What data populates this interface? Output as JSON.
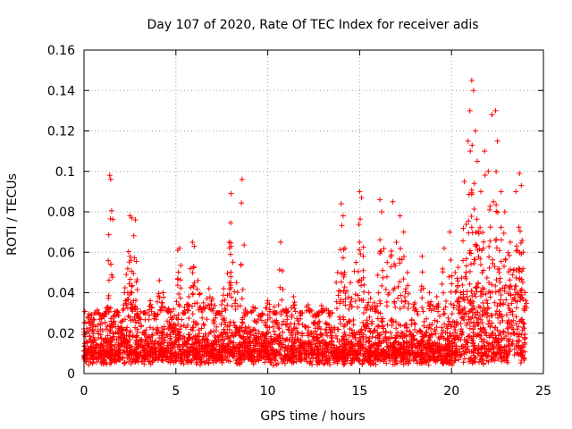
{
  "chart_data": {
    "type": "scatter",
    "title": "Day 107 of 2020, Rate Of TEC Index for receiver adis",
    "xlabel": "GPS time / hours",
    "ylabel": "ROTI / TECUs",
    "xlim": [
      0,
      25
    ],
    "ylim": [
      0,
      0.16
    ],
    "xticks": [
      0,
      5,
      10,
      15,
      20,
      25
    ],
    "xtick_labels": [
      "0",
      "5",
      "10",
      "15",
      "20",
      "25"
    ],
    "yticks": [
      0,
      0.02,
      0.04,
      0.06,
      0.08,
      0.1,
      0.12,
      0.14,
      0.16
    ],
    "ytick_labels": [
      "0",
      "0.02",
      "0.04",
      "0.06",
      "0.08",
      "0.1",
      "0.12",
      "0.14",
      "0.16"
    ],
    "grid": true,
    "marker": "+",
    "color": "#ff0000",
    "series": [
      {
        "name": "ROTI",
        "points": [
          [
            0.1,
            0.012
          ],
          [
            0.3,
            0.025
          ],
          [
            0.5,
            0.018
          ],
          [
            0.7,
            0.03
          ],
          [
            0.9,
            0.022
          ],
          [
            1.1,
            0.028
          ],
          [
            1.3,
            0.033
          ],
          [
            1.4,
            0.098
          ],
          [
            1.45,
            0.096
          ],
          [
            1.6,
            0.02
          ],
          [
            1.8,
            0.031
          ],
          [
            2.0,
            0.015
          ],
          [
            2.2,
            0.04
          ],
          [
            2.3,
            0.049
          ],
          [
            2.5,
            0.078
          ],
          [
            2.6,
            0.077
          ],
          [
            2.8,
            0.076
          ],
          [
            2.5,
            0.058
          ],
          [
            2.7,
            0.036
          ],
          [
            3.0,
            0.025
          ],
          [
            3.3,
            0.03
          ],
          [
            3.6,
            0.036
          ],
          [
            3.9,
            0.028
          ],
          [
            4.1,
            0.046
          ],
          [
            4.3,
            0.04
          ],
          [
            4.6,
            0.032
          ],
          [
            4.8,
            0.015
          ],
          [
            5.1,
            0.061
          ],
          [
            5.2,
            0.062
          ],
          [
            5.4,
            0.03
          ],
          [
            5.7,
            0.038
          ],
          [
            5.9,
            0.065
          ],
          [
            6.0,
            0.063
          ],
          [
            6.2,
            0.046
          ],
          [
            6.5,
            0.035
          ],
          [
            6.8,
            0.042
          ],
          [
            7.0,
            0.037
          ],
          [
            7.3,
            0.03
          ],
          [
            7.6,
            0.042
          ],
          [
            7.9,
            0.065
          ],
          [
            8.0,
            0.063
          ],
          [
            8.0,
            0.089
          ],
          [
            8.3,
            0.045
          ],
          [
            8.6,
            0.096
          ],
          [
            8.8,
            0.03
          ],
          [
            9.2,
            0.033
          ],
          [
            9.6,
            0.028
          ],
          [
            10.0,
            0.036
          ],
          [
            10.4,
            0.03
          ],
          [
            10.7,
            0.065
          ],
          [
            11.0,
            0.032
          ],
          [
            11.4,
            0.038
          ],
          [
            11.8,
            0.03
          ],
          [
            12.2,
            0.034
          ],
          [
            12.6,
            0.028
          ],
          [
            13.0,
            0.032
          ],
          [
            13.4,
            0.03
          ],
          [
            13.8,
            0.05
          ],
          [
            14.0,
            0.084
          ],
          [
            14.1,
            0.078
          ],
          [
            14.2,
            0.062
          ],
          [
            14.5,
            0.045
          ],
          [
            14.8,
            0.055
          ],
          [
            15.0,
            0.09
          ],
          [
            15.1,
            0.087
          ],
          [
            15.2,
            0.058
          ],
          [
            15.5,
            0.04
          ],
          [
            15.8,
            0.035
          ],
          [
            16.1,
            0.086
          ],
          [
            16.2,
            0.08
          ],
          [
            16.5,
            0.055
          ],
          [
            16.8,
            0.085
          ],
          [
            17.0,
            0.065
          ],
          [
            17.2,
            0.078
          ],
          [
            17.4,
            0.07
          ],
          [
            17.6,
            0.05
          ],
          [
            18.0,
            0.035
          ],
          [
            18.4,
            0.058
          ],
          [
            18.8,
            0.04
          ],
          [
            19.2,
            0.038
          ],
          [
            19.6,
            0.062
          ],
          [
            19.9,
            0.07
          ],
          [
            20.2,
            0.05
          ],
          [
            20.5,
            0.04
          ],
          [
            20.7,
            0.095
          ],
          [
            20.9,
            0.115
          ],
          [
            21.0,
            0.13
          ],
          [
            21.1,
            0.145
          ],
          [
            21.2,
            0.14
          ],
          [
            21.3,
            0.12
          ],
          [
            21.4,
            0.105
          ],
          [
            21.6,
            0.09
          ],
          [
            21.8,
            0.11
          ],
          [
            22.0,
            0.1
          ],
          [
            22.2,
            0.128
          ],
          [
            22.4,
            0.13
          ],
          [
            22.5,
            0.115
          ],
          [
            22.7,
            0.09
          ],
          [
            22.9,
            0.08
          ],
          [
            23.2,
            0.065
          ],
          [
            23.5,
            0.09
          ],
          [
            23.7,
            0.099
          ],
          [
            23.8,
            0.093
          ],
          [
            23.9,
            0.06
          ],
          [
            24.0,
            0.04
          ]
        ],
        "band": {
          "x_range": [
            0,
            24
          ],
          "y_min_typical": 0.004,
          "y_max_typical": 0.03
        }
      }
    ]
  }
}
